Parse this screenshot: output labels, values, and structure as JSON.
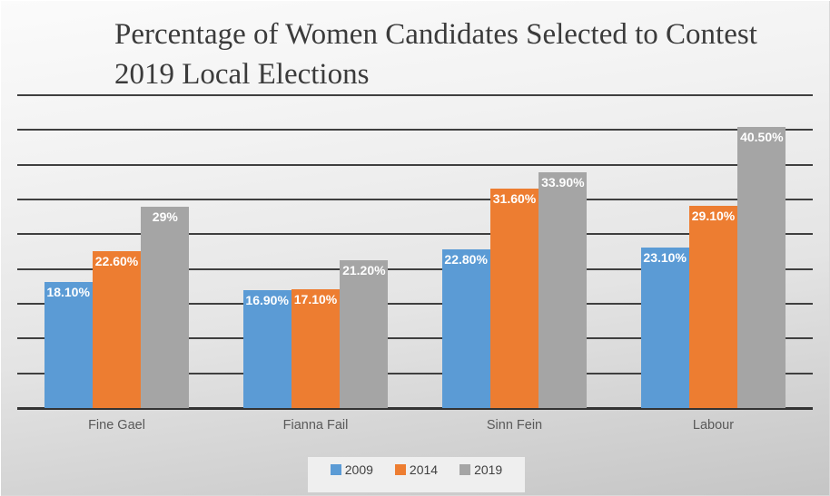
{
  "chart_data": {
    "type": "bar",
    "title": "Percentage of Women Candidates Selected to Contest 2019 Local Elections",
    "categories": [
      "Fine Gael",
      "Fianna Fail",
      "Sinn Fein",
      "Labour"
    ],
    "series": [
      {
        "name": "2009",
        "color": "#5B9BD5",
        "values": [
          18.1,
          16.9,
          22.8,
          23.1
        ],
        "labels": [
          "18.10%",
          "16.90%",
          "22.80%",
          "23.10%"
        ]
      },
      {
        "name": "2014",
        "color": "#ED7D31",
        "values": [
          22.6,
          17.1,
          31.6,
          29.1
        ],
        "labels": [
          "22.60%",
          "17.10%",
          "31.60%",
          "29.10%"
        ]
      },
      {
        "name": "2019",
        "color": "#A5A5A5",
        "values": [
          29.0,
          21.2,
          33.9,
          40.5
        ],
        "labels": [
          "29%",
          "21.20%",
          "33.90%",
          "40.50%"
        ]
      }
    ],
    "xlabel": "",
    "ylabel": "",
    "ylim": [
      0,
      45
    ],
    "gridline_step": 5,
    "grid": "on",
    "gridline_color": "#3f3f3f",
    "data_label_color": "#ffffff",
    "category_label_color": "#595959",
    "legend_position": "bottom",
    "legend_background": "#efefef",
    "legend_entries": [
      "2009",
      "2014",
      "2019"
    ]
  }
}
